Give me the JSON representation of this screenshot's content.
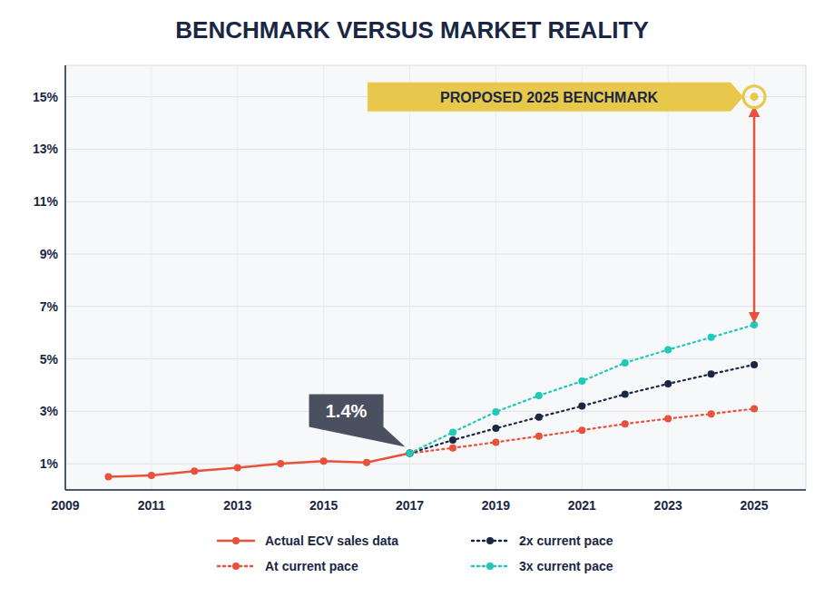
{
  "chart_data": {
    "type": "line",
    "title": "BENCHMARK VERSUS MARKET REALITY",
    "xlim": [
      2009,
      2026.2
    ],
    "ylim": [
      0.0,
      16.2
    ],
    "xticks": [
      2009,
      2011,
      2013,
      2015,
      2017,
      2019,
      2021,
      2023,
      2025
    ],
    "yticks": [
      {
        "value": 1,
        "label": "1%"
      },
      {
        "value": 3,
        "label": "3%"
      },
      {
        "value": 5,
        "label": "5%"
      },
      {
        "value": 7,
        "label": "7%"
      },
      {
        "value": 9,
        "label": "9%"
      },
      {
        "value": 11,
        "label": "11%"
      },
      {
        "value": 13,
        "label": "13%"
      },
      {
        "value": 15,
        "label": "15%"
      }
    ],
    "grid": true,
    "legend": "bottom",
    "series": [
      {
        "name": "Actual ECV sales data",
        "color": "#e8513a",
        "line_style": "solid",
        "marker": "circle",
        "x": [
          2010,
          2011,
          2012,
          2013,
          2014,
          2015,
          2016,
          2017
        ],
        "values": [
          0.5,
          0.55,
          0.72,
          0.85,
          1.0,
          1.1,
          1.05,
          1.4
        ]
      },
      {
        "name": "At current pace",
        "color": "#e8513a",
        "line_style": "dotted",
        "marker": "circle",
        "x": [
          2017,
          2018,
          2019,
          2020,
          2021,
          2022,
          2023,
          2024,
          2025
        ],
        "values": [
          1.4,
          1.6,
          1.82,
          2.05,
          2.28,
          2.52,
          2.72,
          2.9,
          3.1
        ]
      },
      {
        "name": "2x current pace",
        "color": "#1a2744",
        "line_style": "dotted",
        "marker": "circle",
        "x": [
          2017,
          2018,
          2019,
          2020,
          2021,
          2022,
          2023,
          2024,
          2025
        ],
        "values": [
          1.4,
          1.9,
          2.35,
          2.78,
          3.2,
          3.65,
          4.05,
          4.42,
          4.78
        ]
      },
      {
        "name": "3x current pace",
        "color": "#1dc9b7",
        "line_style": "dotted",
        "marker": "circle",
        "x": [
          2017,
          2018,
          2019,
          2020,
          2021,
          2022,
          2023,
          2024,
          2025
        ],
        "values": [
          1.4,
          2.2,
          2.98,
          3.6,
          4.15,
          4.85,
          5.35,
          5.82,
          6.3
        ]
      }
    ],
    "annotations": [
      {
        "text": "PROPOSED 2025 BENCHMARK",
        "x": 2025,
        "y": 15,
        "color": "#e8c84a"
      },
      {
        "text": "1.4%",
        "x": 2017,
        "y": 1.4,
        "color": "#4a5060"
      }
    ]
  }
}
